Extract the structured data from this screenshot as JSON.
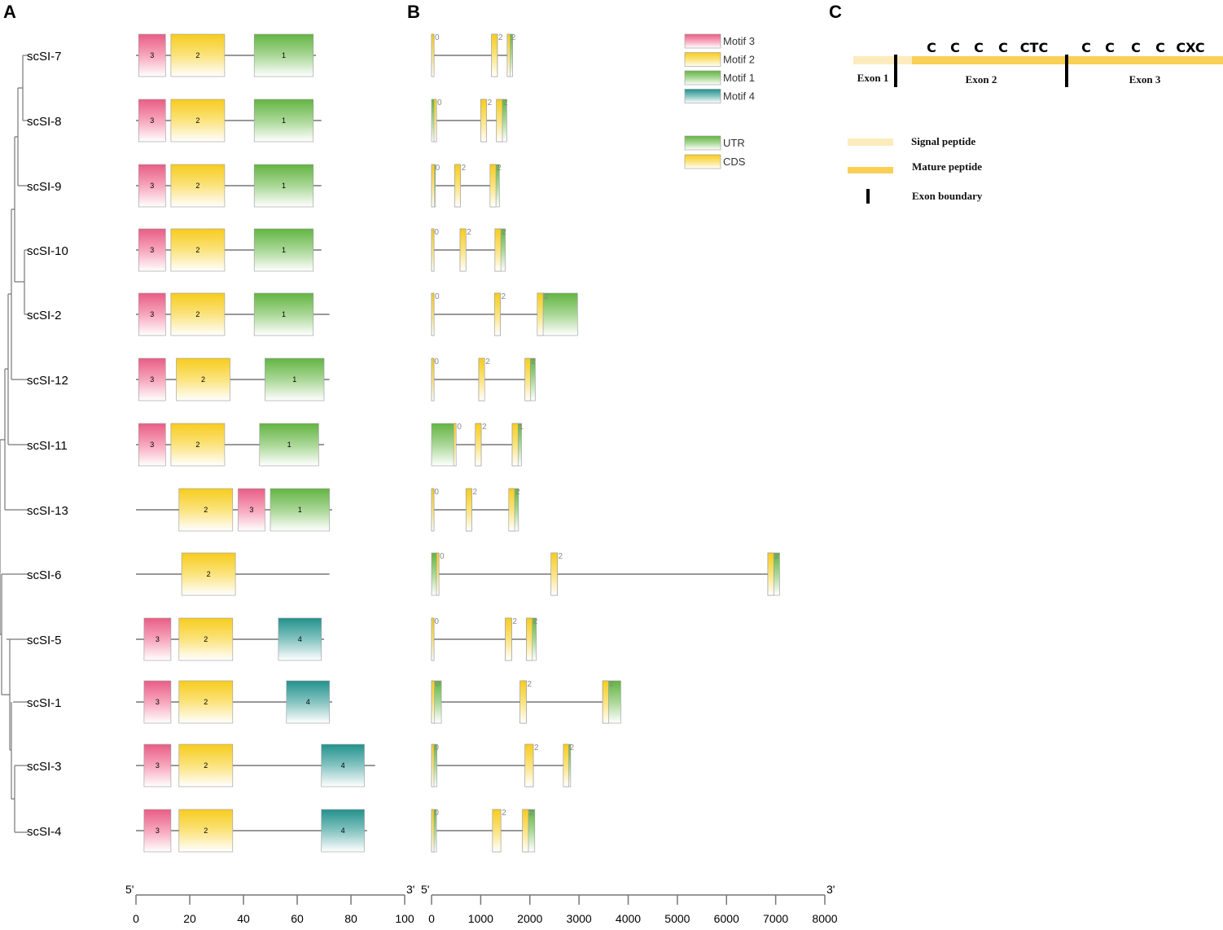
{
  "panels": {
    "a": "A",
    "b": "B",
    "c": "C"
  },
  "colors": {
    "motif3": "#e85d86",
    "motif2": "#f7cc1e",
    "motif1": "#63b443",
    "motif4": "#23918c",
    "utr": "#63b443",
    "cds": "#f7cc1e",
    "signal": "#fcebbd",
    "mature": "#f9cf55",
    "boundary": "#000000",
    "line": "#777777"
  },
  "genes": [
    "scSI-7",
    "scSI-8",
    "scSI-9",
    "scSI-10",
    "scSI-2",
    "scSI-12",
    "scSI-11",
    "scSI-13",
    "scSI-6",
    "scSI-5",
    "scSI-1",
    "scSI-3",
    "scSI-4"
  ],
  "motif_structure": {
    "axis": {
      "min": 0,
      "max": 100,
      "ticks": [
        0,
        20,
        40,
        60,
        80,
        100
      ],
      "start_label": "5'",
      "end_label": "3'"
    },
    "proteins": [
      {
        "length": 67,
        "motifs": [
          {
            "id": "3",
            "start": 1,
            "end": 11
          },
          {
            "id": "2",
            "start": 13,
            "end": 33
          },
          {
            "id": "1",
            "start": 44,
            "end": 66
          }
        ]
      },
      {
        "length": 69,
        "motifs": [
          {
            "id": "3",
            "start": 1,
            "end": 11
          },
          {
            "id": "2",
            "start": 13,
            "end": 33
          },
          {
            "id": "1",
            "start": 44,
            "end": 66
          }
        ]
      },
      {
        "length": 69,
        "motifs": [
          {
            "id": "3",
            "start": 1,
            "end": 11
          },
          {
            "id": "2",
            "start": 13,
            "end": 33
          },
          {
            "id": "1",
            "start": 44,
            "end": 66
          }
        ]
      },
      {
        "length": 69,
        "motifs": [
          {
            "id": "3",
            "start": 1,
            "end": 11
          },
          {
            "id": "2",
            "start": 13,
            "end": 33
          },
          {
            "id": "1",
            "start": 44,
            "end": 66
          }
        ]
      },
      {
        "length": 72,
        "motifs": [
          {
            "id": "3",
            "start": 1,
            "end": 11
          },
          {
            "id": "2",
            "start": 13,
            "end": 33
          },
          {
            "id": "1",
            "start": 44,
            "end": 66
          }
        ]
      },
      {
        "length": 72,
        "motifs": [
          {
            "id": "3",
            "start": 1,
            "end": 11
          },
          {
            "id": "2",
            "start": 15,
            "end": 35
          },
          {
            "id": "1",
            "start": 48,
            "end": 70
          }
        ]
      },
      {
        "length": 70,
        "motifs": [
          {
            "id": "3",
            "start": 1,
            "end": 11
          },
          {
            "id": "2",
            "start": 13,
            "end": 33
          },
          {
            "id": "1",
            "start": 46,
            "end": 68
          }
        ]
      },
      {
        "length": 73,
        "motifs": [
          {
            "id": "2",
            "start": 16,
            "end": 36
          },
          {
            "id": "3",
            "start": 38,
            "end": 48
          },
          {
            "id": "1",
            "start": 50,
            "end": 72
          }
        ]
      },
      {
        "length": 72,
        "motifs": [
          {
            "id": "2",
            "start": 17,
            "end": 37
          }
        ]
      },
      {
        "length": 70,
        "motifs": [
          {
            "id": "3",
            "start": 3,
            "end": 13
          },
          {
            "id": "2",
            "start": 16,
            "end": 36
          },
          {
            "id": "4",
            "start": 53,
            "end": 69
          }
        ]
      },
      {
        "length": 73,
        "motifs": [
          {
            "id": "3",
            "start": 3,
            "end": 13
          },
          {
            "id": "2",
            "start": 16,
            "end": 36
          },
          {
            "id": "4",
            "start": 56,
            "end": 72
          }
        ]
      },
      {
        "length": 89,
        "motifs": [
          {
            "id": "3",
            "start": 3,
            "end": 13
          },
          {
            "id": "2",
            "start": 16,
            "end": 36
          },
          {
            "id": "4",
            "start": 69,
            "end": 85
          }
        ]
      },
      {
        "length": 86,
        "motifs": [
          {
            "id": "3",
            "start": 3,
            "end": 13
          },
          {
            "id": "2",
            "start": 16,
            "end": 36
          },
          {
            "id": "4",
            "start": 69,
            "end": 85
          }
        ]
      }
    ]
  },
  "gene_structure": {
    "axis": {
      "min": 0,
      "max": 8000,
      "ticks": [
        0,
        1000,
        2000,
        3000,
        4000,
        5000,
        6000,
        7000,
        8000
      ],
      "start_label": "5'",
      "end_label": "3'"
    },
    "genes": [
      {
        "length": 1650,
        "exons": [
          {
            "start": 0,
            "end": 50,
            "cds": [
              0,
              50
            ],
            "phase": "0"
          },
          {
            "start": 1220,
            "end": 1340,
            "cds": [
              1220,
              1340
            ],
            "phase": "2"
          },
          {
            "start": 1540,
            "end": 1650,
            "cds": [
              1540,
              1600
            ],
            "phase": "2"
          }
        ]
      },
      {
        "length": 1530,
        "exons": [
          {
            "start": 0,
            "end": 100,
            "cds": [
              50,
              100
            ],
            "phase": "0"
          },
          {
            "start": 1000,
            "end": 1120,
            "cds": [
              1000,
              1120
            ],
            "phase": "2"
          },
          {
            "start": 1320,
            "end": 1530,
            "cds": [
              1320,
              1440
            ],
            "phase": "2"
          }
        ]
      },
      {
        "length": 1380,
        "exons": [
          {
            "start": 0,
            "end": 80,
            "cds": [
              0,
              60
            ],
            "phase": "0"
          },
          {
            "start": 470,
            "end": 590,
            "cds": [
              470,
              590
            ],
            "phase": "2"
          },
          {
            "start": 1190,
            "end": 1380,
            "cds": [
              1190,
              1310
            ],
            "phase": "2"
          }
        ]
      },
      {
        "length": 1500,
        "exons": [
          {
            "start": 0,
            "end": 40,
            "cds": [
              0,
              40
            ],
            "phase": "0"
          },
          {
            "start": 580,
            "end": 700,
            "cds": [
              580,
              700
            ],
            "phase": "2"
          },
          {
            "start": 1290,
            "end": 1500,
            "cds": [
              1290,
              1410
            ],
            "phase": "2"
          }
        ]
      },
      {
        "length": 2970,
        "exons": [
          {
            "start": 0,
            "end": 50,
            "cds": [
              0,
              50
            ],
            "phase": "0"
          },
          {
            "start": 1280,
            "end": 1400,
            "cds": [
              1280,
              1400
            ],
            "phase": "2"
          },
          {
            "start": 2150,
            "end": 2970,
            "cds": [
              2150,
              2270
            ],
            "phase": "2"
          }
        ]
      },
      {
        "length": 2110,
        "exons": [
          {
            "start": 0,
            "end": 40,
            "cds": [
              0,
              40
            ],
            "phase": "0"
          },
          {
            "start": 960,
            "end": 1080,
            "cds": [
              960,
              1080
            ],
            "phase": "2"
          },
          {
            "start": 1900,
            "end": 2110,
            "cds": [
              1900,
              2010
            ],
            "phase": "2"
          }
        ]
      },
      {
        "length": 1830,
        "exons": [
          {
            "start": 0,
            "end": 500,
            "cds": [
              450,
              500
            ],
            "phase": "0"
          },
          {
            "start": 890,
            "end": 1010,
            "cds": [
              890,
              1010
            ],
            "phase": "2"
          },
          {
            "start": 1640,
            "end": 1830,
            "cds": [
              1640,
              1760
            ],
            "phase": "1"
          }
        ]
      },
      {
        "length": 1770,
        "exons": [
          {
            "start": 0,
            "end": 40,
            "cds": [
              0,
              40
            ],
            "phase": "0"
          },
          {
            "start": 700,
            "end": 820,
            "cds": [
              700,
              820
            ],
            "phase": "2"
          },
          {
            "start": 1570,
            "end": 1770,
            "cds": [
              1570,
              1690
            ],
            "phase": "2"
          }
        ]
      },
      {
        "length": 7080,
        "exons": [
          {
            "start": 0,
            "end": 150,
            "cds": [
              100,
              150
            ],
            "phase": "0"
          },
          {
            "start": 2430,
            "end": 2560,
            "cds": [
              2430,
              2560
            ],
            "phase": "2"
          },
          {
            "start": 6840,
            "end": 7080,
            "cds": [
              6840,
              6960
            ],
            "phase": "2"
          }
        ]
      },
      {
        "length": 2130,
        "exons": [
          {
            "start": 0,
            "end": 40,
            "cds": [
              0,
              40
            ],
            "phase": "0"
          },
          {
            "start": 1500,
            "end": 1630,
            "cds": [
              1500,
              1630
            ],
            "phase": "2"
          },
          {
            "start": 1930,
            "end": 2130,
            "cds": [
              1930,
              2050
            ],
            "phase": "2"
          }
        ]
      },
      {
        "length": 3850,
        "exons": [
          {
            "start": 0,
            "end": 200,
            "cds": [
              0,
              60
            ],
            "phase": "0"
          },
          {
            "start": 1800,
            "end": 1930,
            "cds": [
              1800,
              1930
            ],
            "phase": "2"
          },
          {
            "start": 3480,
            "end": 3850,
            "cds": [
              3480,
              3600
            ],
            "phase": "2"
          }
        ]
      },
      {
        "length": 2830,
        "exons": [
          {
            "start": 0,
            "end": 110,
            "cds": [
              0,
              40
            ],
            "phase": "0"
          },
          {
            "start": 1900,
            "end": 2070,
            "cds": [
              1900,
              2070
            ],
            "phase": "2"
          },
          {
            "start": 2680,
            "end": 2830,
            "cds": [
              2680,
              2790
            ],
            "phase": "2"
          }
        ]
      },
      {
        "length": 2100,
        "exons": [
          {
            "start": 0,
            "end": 100,
            "cds": [
              0,
              40
            ],
            "phase": "0"
          },
          {
            "start": 1240,
            "end": 1410,
            "cds": [
              1240,
              1410
            ],
            "phase": "2"
          },
          {
            "start": 1850,
            "end": 2100,
            "cds": [
              1850,
              1970
            ],
            "phase": "2"
          }
        ]
      }
    ]
  },
  "legend_motifs": [
    {
      "key": "motif3",
      "label": "Motif 3"
    },
    {
      "key": "motif2",
      "label": "Motif 2"
    },
    {
      "key": "motif1",
      "label": "Motif 1"
    },
    {
      "key": "motif4",
      "label": "Motif 4"
    }
  ],
  "legend_features": [
    {
      "key": "utr",
      "label": "UTR"
    },
    {
      "key": "cds",
      "label": "CDS"
    }
  ],
  "panel_c": {
    "cysteines_exon2": [
      "C",
      "C",
      "C",
      "C",
      "CTC"
    ],
    "cysteines_exon3": [
      "C",
      "C",
      "C",
      "C",
      "CXC"
    ],
    "exons": [
      "Exon 1",
      "Exon 2",
      "Exon 3"
    ],
    "legend": [
      "Signal peptide",
      "Mature peptide",
      "Exon boundary"
    ]
  }
}
